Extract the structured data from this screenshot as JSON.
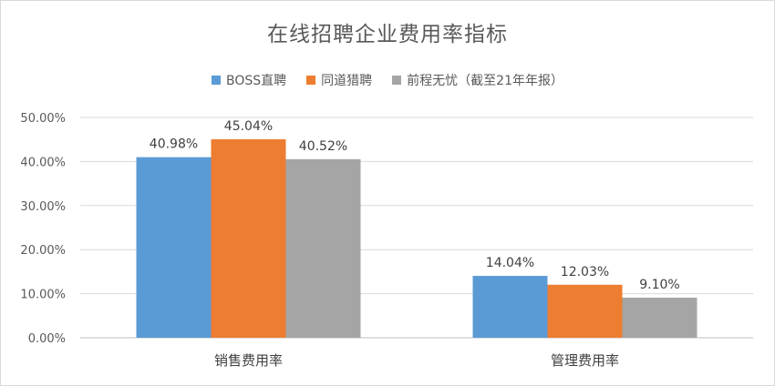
{
  "chart_data": {
    "type": "bar",
    "title": "在线招聘企业费用率指标",
    "categories": [
      "销售费用率",
      "管理费用率"
    ],
    "series": [
      {
        "name": "BOSS直聘",
        "color": "#5b9bd5",
        "values": [
          40.98,
          14.04
        ],
        "labels": [
          "40.98%",
          "14.04%"
        ]
      },
      {
        "name": "同道猎聘",
        "color": "#ed7d31",
        "values": [
          45.04,
          12.03
        ],
        "labels": [
          "45.04%",
          "12.03%"
        ]
      },
      {
        "name": "前程无忧（截至21年年报）",
        "color": "#a5a5a5",
        "values": [
          40.52,
          9.1
        ],
        "labels": [
          "40.52%",
          "9.10%"
        ]
      }
    ],
    "ylim": [
      0,
      50
    ],
    "yticks": [
      0,
      10,
      20,
      30,
      40,
      50
    ],
    "ytick_labels": [
      "0.00%",
      "10.00%",
      "20.00%",
      "30.00%",
      "40.00%",
      "50.00%"
    ],
    "grid": true,
    "legend_position": "top"
  }
}
